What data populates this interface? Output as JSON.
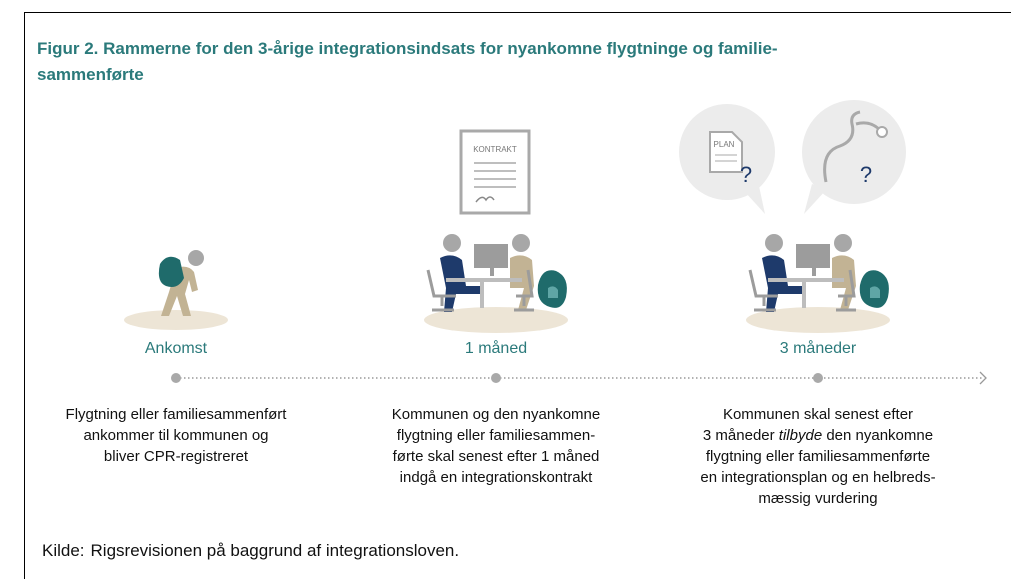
{
  "title": {
    "lines": [
      "Figur 2. Rammerne for den 3-årige integrationsindsats for nyankomne flygtninge og familie-",
      "sammenførte"
    ]
  },
  "icons": {
    "contract": "KONTRAKT",
    "plan": "PLAN",
    "question_1": "?",
    "question_2": "?"
  },
  "steps": [
    {
      "label": "Ankomst",
      "description": [
        "Flygtning eller familiesammenført",
        "ankommer til kommunen og",
        "bliver CPR-registreret"
      ]
    },
    {
      "label": "1 måned",
      "description": [
        "Kommunen og den nyankomne",
        "flygtning eller familiesammen-",
        "førte skal senest efter 1 måned",
        "indgå en integrationskontrakt"
      ]
    },
    {
      "label": "3 måneder",
      "description": [
        "Kommunen skal senest efter",
        [
          "3 måneder",
          "tilbyde",
          "den nyankomne"
        ],
        "flygtning eller familiesammenførte",
        "en integrationsplan og en helbreds-",
        "mæssig vurdering"
      ]
    }
  ],
  "source": {
    "prefix": "Kilde:",
    "text": "Rigsrevisionen på baggrund af integrationsloven."
  }
}
